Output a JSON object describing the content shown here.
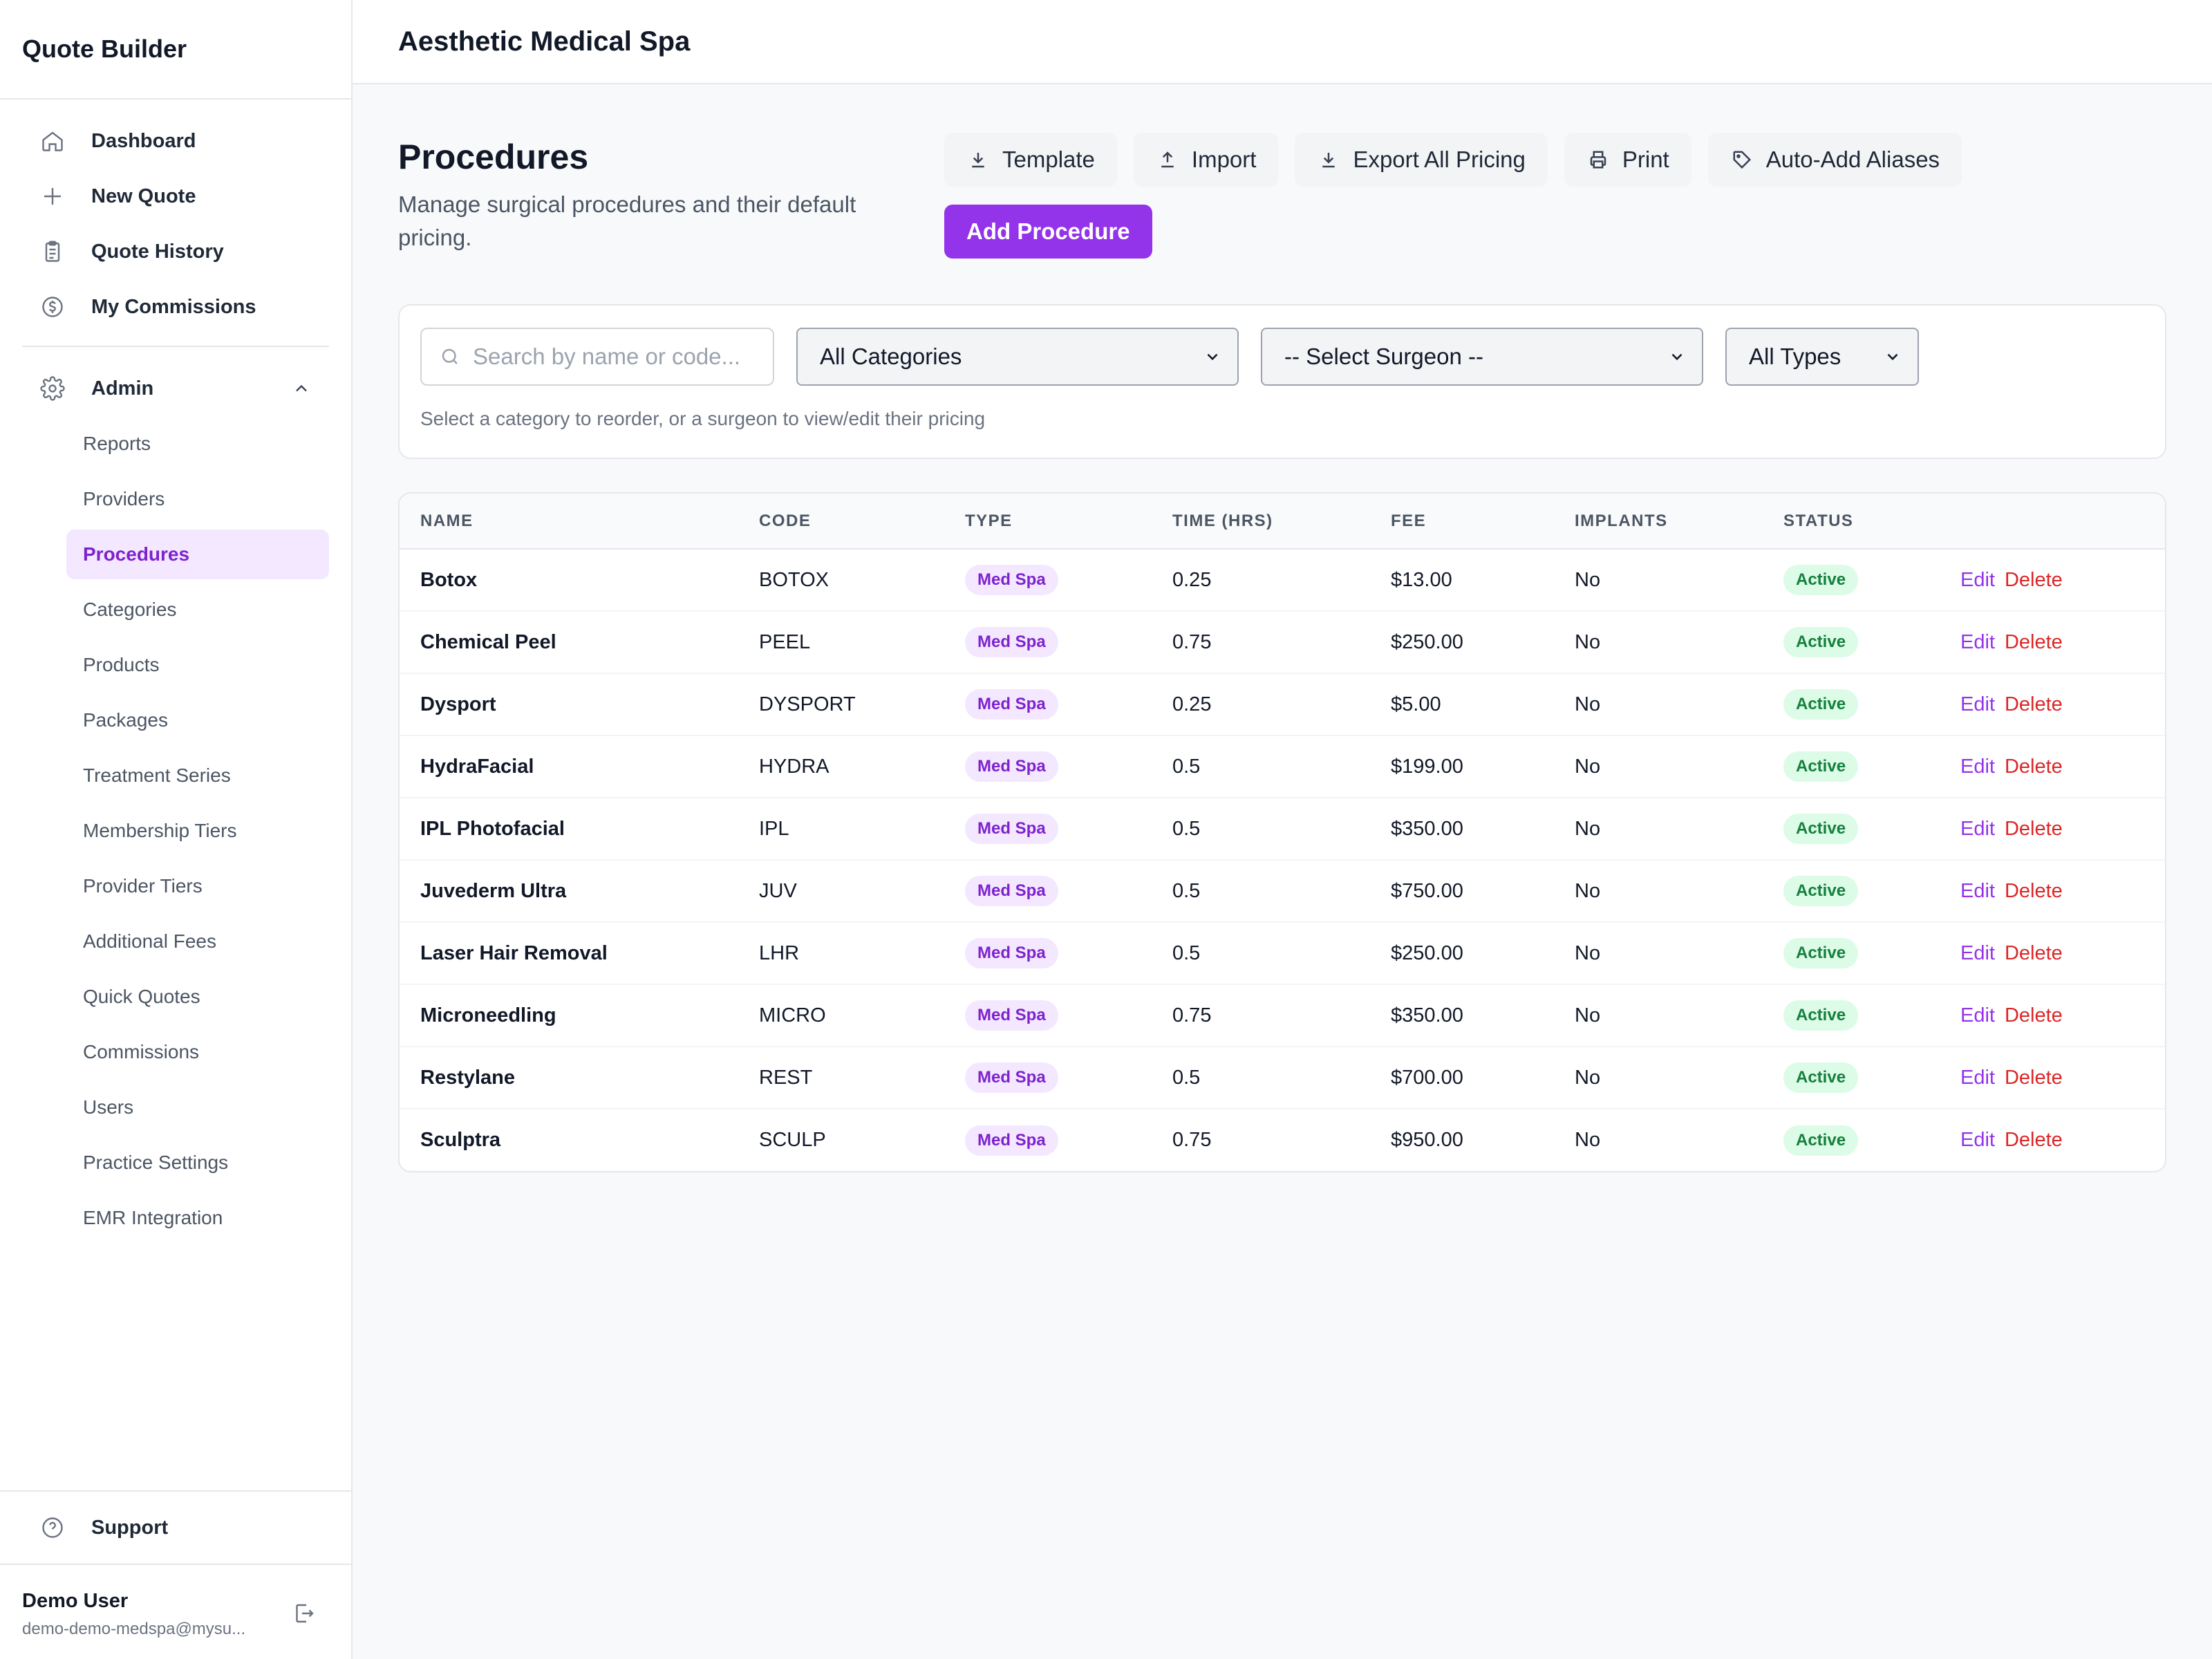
{
  "app": {
    "brand": "Quote Builder",
    "practice_name": "Aesthetic Medical Spa"
  },
  "sidebar": {
    "main_items": [
      {
        "label": "Dashboard",
        "icon": "home-icon"
      },
      {
        "label": "New Quote",
        "icon": "plus-icon"
      },
      {
        "label": "Quote History",
        "icon": "clipboard-icon"
      },
      {
        "label": "My Commissions",
        "icon": "dollar-circle-icon"
      }
    ],
    "admin": {
      "label": "Admin",
      "icon": "gear-icon",
      "expanded": true,
      "items": [
        {
          "label": "Reports",
          "active": false
        },
        {
          "label": "Providers",
          "active": false
        },
        {
          "label": "Procedures",
          "active": true
        },
        {
          "label": "Categories",
          "active": false
        },
        {
          "label": "Products",
          "active": false
        },
        {
          "label": "Packages",
          "active": false
        },
        {
          "label": "Treatment Series",
          "active": false
        },
        {
          "label": "Membership Tiers",
          "active": false
        },
        {
          "label": "Provider Tiers",
          "active": false
        },
        {
          "label": "Additional Fees",
          "active": false
        },
        {
          "label": "Quick Quotes",
          "active": false
        },
        {
          "label": "Commissions",
          "active": false
        },
        {
          "label": "Users",
          "active": false
        },
        {
          "label": "Practice Settings",
          "active": false
        },
        {
          "label": "EMR Integration",
          "active": false
        }
      ]
    },
    "support_label": "Support",
    "user": {
      "name": "Demo User",
      "email": "demo-demo-medspa@mysu..."
    }
  },
  "page": {
    "title": "Procedures",
    "subtitle": "Manage surgical procedures and their default pricing.",
    "actions": {
      "template": "Template",
      "import": "Import",
      "export": "Export All Pricing",
      "print": "Print",
      "aliases": "Auto-Add Aliases",
      "add": "Add Procedure"
    }
  },
  "filters": {
    "search_placeholder": "Search by name or code...",
    "category": "All Categories",
    "surgeon": "-- Select Surgeon --",
    "type": "All Types",
    "hint": "Select a category to reorder, or a surgeon to view/edit their pricing"
  },
  "table": {
    "headers": [
      "NAME",
      "CODE",
      "TYPE",
      "TIME (HRS)",
      "FEE",
      "IMPLANTS",
      "STATUS",
      ""
    ],
    "edit_label": "Edit",
    "delete_label": "Delete",
    "rows": [
      {
        "name": "Botox",
        "code": "BOTOX",
        "type": "Med Spa",
        "time": "0.25",
        "fee": "$13.00",
        "implants": "No",
        "status": "Active"
      },
      {
        "name": "Chemical Peel",
        "code": "PEEL",
        "type": "Med Spa",
        "time": "0.75",
        "fee": "$250.00",
        "implants": "No",
        "status": "Active"
      },
      {
        "name": "Dysport",
        "code": "DYSPORT",
        "type": "Med Spa",
        "time": "0.25",
        "fee": "$5.00",
        "implants": "No",
        "status": "Active"
      },
      {
        "name": "HydraFacial",
        "code": "HYDRA",
        "type": "Med Spa",
        "time": "0.5",
        "fee": "$199.00",
        "implants": "No",
        "status": "Active"
      },
      {
        "name": "IPL Photofacial",
        "code": "IPL",
        "type": "Med Spa",
        "time": "0.5",
        "fee": "$350.00",
        "implants": "No",
        "status": "Active"
      },
      {
        "name": "Juvederm Ultra",
        "code": "JUV",
        "type": "Med Spa",
        "time": "0.5",
        "fee": "$750.00",
        "implants": "No",
        "status": "Active"
      },
      {
        "name": "Laser Hair Removal",
        "code": "LHR",
        "type": "Med Spa",
        "time": "0.5",
        "fee": "$250.00",
        "implants": "No",
        "status": "Active"
      },
      {
        "name": "Microneedling",
        "code": "MICRO",
        "type": "Med Spa",
        "time": "0.75",
        "fee": "$350.00",
        "implants": "No",
        "status": "Active"
      },
      {
        "name": "Restylane",
        "code": "REST",
        "type": "Med Spa",
        "time": "0.5",
        "fee": "$700.00",
        "implants": "No",
        "status": "Active"
      },
      {
        "name": "Sculptra",
        "code": "SCULP",
        "type": "Med Spa",
        "time": "0.75",
        "fee": "$950.00",
        "implants": "No",
        "status": "Active"
      }
    ]
  },
  "colors": {
    "accent": "#9333ea",
    "accent_soft": "#f3e8ff",
    "danger": "#dc2626",
    "success_bg": "#dcfce7",
    "success_text": "#15803d"
  }
}
